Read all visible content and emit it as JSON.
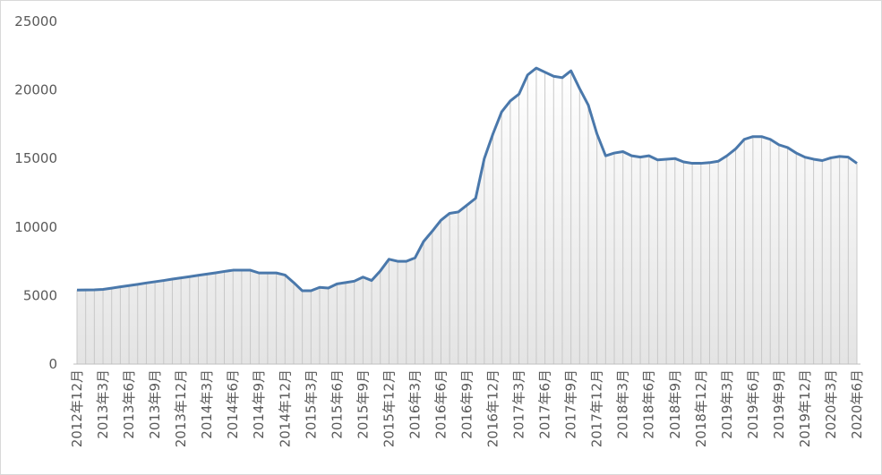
{
  "chart_data": {
    "type": "line",
    "categories": [
      "2012年12月",
      null,
      null,
      "2013年3月",
      null,
      null,
      "2013年6月",
      null,
      null,
      "2013年9月",
      null,
      null,
      "2013年12月",
      null,
      null,
      "2014年3月",
      null,
      null,
      "2014年6月",
      null,
      null,
      "2014年9月",
      null,
      null,
      "2014年12月",
      null,
      null,
      "2015年3月",
      null,
      null,
      "2015年6月",
      null,
      null,
      "2015年9月",
      null,
      null,
      "2015年12月",
      null,
      null,
      "2016年3月",
      null,
      null,
      "2016年6月",
      null,
      null,
      "2016年9月",
      null,
      null,
      "2016年12月",
      null,
      null,
      "2017年3月",
      null,
      null,
      "2017年6月",
      null,
      null,
      "2017年9月",
      null,
      null,
      "2017年12月",
      null,
      null,
      "2018年3月",
      null,
      null,
      "2018年6月",
      null,
      null,
      "2018年9月",
      null,
      null,
      "2018年12月",
      null,
      null,
      "2019年3月",
      null,
      null,
      "2019年6月",
      null,
      null,
      "2019年9月",
      null,
      null,
      "2019年12月",
      null,
      null,
      "2020年3月",
      null,
      null,
      "2020年6月"
    ],
    "values": [
      5400,
      5410,
      5420,
      5450,
      5540,
      5640,
      5730,
      5820,
      5920,
      6010,
      6100,
      6200,
      6290,
      6380,
      6480,
      6570,
      6660,
      6760,
      6850,
      6850,
      6850,
      6650,
      6650,
      6650,
      6500,
      5950,
      5350,
      5350,
      5600,
      5550,
      5850,
      5950,
      6050,
      6350,
      6100,
      6800,
      7650,
      7500,
      7500,
      7750,
      8950,
      9700,
      10500,
      11000,
      11100,
      11600,
      12100,
      15000,
      16800,
      18400,
      19200,
      19700,
      21100,
      21600,
      21300,
      21000,
      20900,
      21400,
      20100,
      18900,
      16800,
      15200,
      15400,
      15500,
      15200,
      15100,
      15200,
      14900,
      14950,
      15000,
      14750,
      14650,
      14650,
      14700,
      14800,
      15200,
      15700,
      16400,
      16600,
      16600,
      16400,
      16000,
      15800,
      15400,
      15100,
      14950,
      14850,
      15050,
      15150,
      15100,
      14650
    ],
    "color": "#4a78ab",
    "ylim": [
      0,
      25000
    ],
    "yticks": [
      0,
      5000,
      10000,
      15000,
      20000,
      25000
    ]
  }
}
